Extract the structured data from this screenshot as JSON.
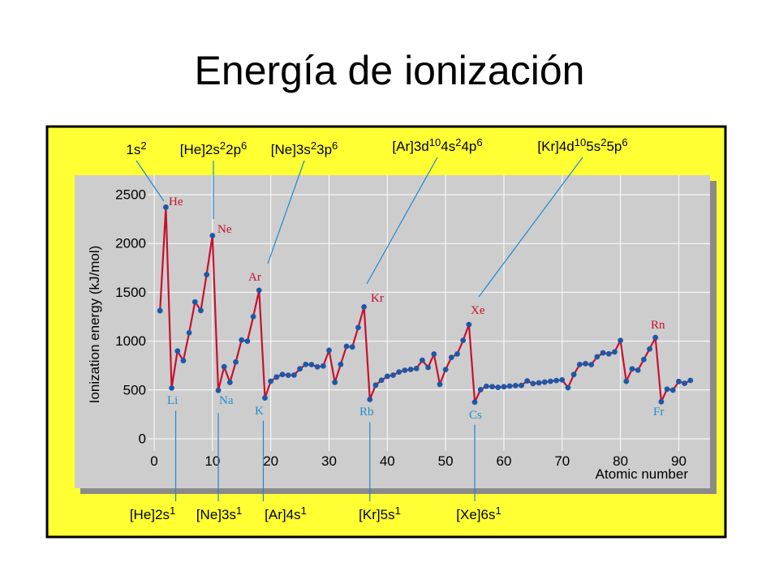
{
  "slide": {
    "title": "Energía de ionización"
  },
  "colors": {
    "frame": "#ffff33",
    "plot_bg": "#cdcdcd",
    "line": "#c8102e",
    "point": "#1f57a6",
    "leader": "#1e88d0",
    "label_red": "#c8102e",
    "label_blue": "#1e90c8"
  },
  "chart_data": {
    "type": "line",
    "xlabel": "Atomic number",
    "ylabel": "Ionization energy (kJ/mol)",
    "xlim": [
      0,
      93
    ],
    "ylim": [
      0,
      2600
    ],
    "xticks": [
      0,
      10,
      20,
      30,
      40,
      50,
      60,
      70,
      80,
      90
    ],
    "yticks": [
      0,
      500,
      1000,
      1500,
      2000,
      2500
    ],
    "grid": true,
    "series": [
      {
        "x": [
          1,
          2,
          3,
          4,
          5,
          6,
          7,
          8,
          9,
          10,
          11,
          12,
          13,
          14,
          15,
          16,
          17,
          18,
          19,
          20,
          21,
          22,
          23,
          24,
          25,
          26,
          27,
          28,
          29,
          30,
          31,
          32,
          33,
          34,
          35,
          36,
          37,
          38,
          39,
          40,
          41,
          42,
          43,
          44,
          45,
          46,
          47,
          48,
          49,
          50,
          51,
          52,
          53,
          54,
          55,
          56,
          57,
          58,
          59,
          60,
          61,
          62,
          63,
          64,
          65,
          66,
          67,
          68,
          69,
          70,
          71,
          72,
          73,
          74,
          75,
          76,
          77,
          78,
          79,
          80,
          81,
          82,
          83,
          84,
          85,
          86,
          87,
          88,
          89,
          90,
          91,
          92
        ],
        "y": [
          1312,
          2372,
          520,
          899,
          801,
          1086,
          1402,
          1314,
          1681,
          2081,
          496,
          738,
          578,
          787,
          1012,
          1000,
          1251,
          1521,
          419,
          590,
          633,
          659,
          651,
          653,
          717,
          762,
          760,
          737,
          746,
          906,
          579,
          762,
          947,
          941,
          1140,
          1351,
          403,
          550,
          600,
          640,
          652,
          684,
          702,
          710,
          720,
          804,
          731,
          868,
          558,
          709,
          834,
          869,
          1008,
          1170,
          376,
          503,
          538,
          534,
          527,
          533,
          540,
          545,
          547,
          593,
          566,
          573,
          581,
          589,
          597,
          603,
          524,
          659,
          761,
          770,
          760,
          840,
          880,
          870,
          890,
          1007,
          589,
          716,
          703,
          812,
          920,
          1037,
          380,
          509,
          499,
          587,
          568,
          598
        ]
      }
    ],
    "annotations": {
      "peaks": [
        {
          "element": "He",
          "x": 2,
          "config": {
            "core": "1s",
            "shells": [
              {
                "main": "",
                "sup": "2"
              }
            ]
          }
        },
        {
          "element": "Ne",
          "x": 10,
          "config": {
            "core": "[He]2s",
            "shells": [
              {
                "main": "",
                "sup": "2"
              },
              {
                "main": "2p",
                "sup": "6"
              }
            ]
          }
        },
        {
          "element": "Ar",
          "x": 18,
          "config": {
            "core": "[Ne]3s",
            "shells": [
              {
                "main": "",
                "sup": "2"
              },
              {
                "main": "3p",
                "sup": "6"
              }
            ]
          }
        },
        {
          "element": "Kr",
          "x": 36,
          "config": {
            "core": "[Ar]3d",
            "shells": [
              {
                "main": "",
                "sup": "10"
              },
              {
                "main": "4s",
                "sup": "2"
              },
              {
                "main": "4p",
                "sup": "6"
              }
            ]
          }
        },
        {
          "element": "Xe",
          "x": 54,
          "config": {
            "core": "[Kr]4d",
            "shells": [
              {
                "main": "",
                "sup": "10"
              },
              {
                "main": "5s",
                "sup": "2"
              },
              {
                "main": "5p",
                "sup": "6"
              }
            ]
          }
        },
        {
          "element": "Rn",
          "x": 86
        }
      ],
      "troughs": [
        {
          "element": "Li",
          "x": 3,
          "config": {
            "core": "[He]2s",
            "shells": [
              {
                "main": "",
                "sup": "1"
              }
            ]
          }
        },
        {
          "element": "Na",
          "x": 11,
          "config": {
            "core": "[Ne]3s",
            "shells": [
              {
                "main": "",
                "sup": "1"
              }
            ]
          }
        },
        {
          "element": "K",
          "x": 19,
          "config": {
            "core": "[Ar]4s",
            "shells": [
              {
                "main": "",
                "sup": "1"
              }
            ]
          }
        },
        {
          "element": "Rb",
          "x": 37,
          "config": {
            "core": "[Kr]5s",
            "shells": [
              {
                "main": "",
                "sup": "1"
              }
            ]
          }
        },
        {
          "element": "Cs",
          "x": 55,
          "config": {
            "core": "[Xe]6s",
            "shells": [
              {
                "main": "",
                "sup": "1"
              }
            ]
          }
        },
        {
          "element": "Fr",
          "x": 87
        }
      ]
    }
  }
}
